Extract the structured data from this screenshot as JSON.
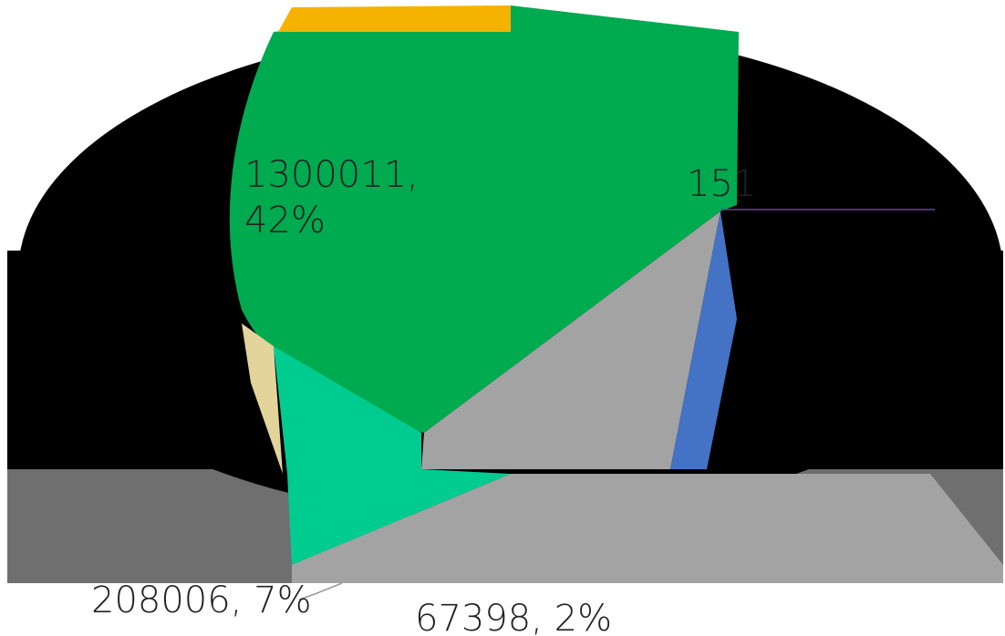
{
  "chart_data": {
    "type": "pie",
    "title": "",
    "labels_visible": [
      "1300011, 42%",
      "151",
      "208006, 7%",
      "67398, 2%"
    ],
    "slices": [
      {
        "value": 1300011,
        "percent": 42,
        "color": "#00AA4F"
      },
      {
        "value": 208006,
        "percent": 7,
        "color": "#00CC90"
      },
      {
        "value": 67398,
        "percent": 2,
        "color": "#A3A3A3"
      },
      {
        "value": null,
        "percent": null,
        "label_fragment": "151",
        "color": "#4472C4"
      },
      {
        "value": null,
        "percent": null,
        "color": "#F5B300"
      },
      {
        "value": null,
        "percent": null,
        "color": "#E2D49A"
      }
    ]
  },
  "labels": {
    "big_value": "1300011,",
    "big_pct": "42%",
    "right_value": "151",
    "bottom_left": "208006, 7%",
    "bottom_center": "67398, 2%"
  }
}
